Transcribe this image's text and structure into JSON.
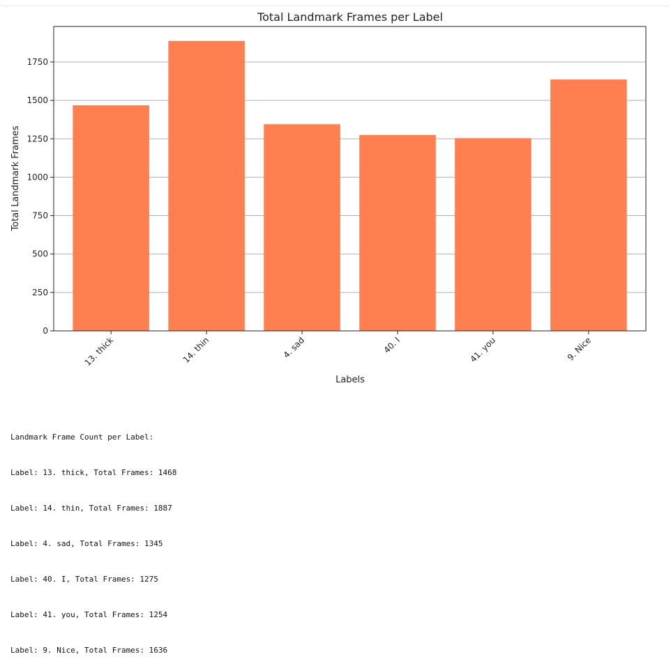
{
  "chart_data": {
    "type": "bar",
    "title": "Total Landmark Frames per Label",
    "xlabel": "Labels",
    "ylabel": "Total Landmark Frames",
    "categories": [
      "13. thick",
      "14. thin",
      "4. sad",
      "40. I",
      "41. you",
      "9. Nice"
    ],
    "values": [
      1468,
      1887,
      1345,
      1275,
      1254,
      1636
    ],
    "ylim": [
      0,
      1981
    ],
    "yticks": [
      0,
      250,
      500,
      750,
      1000,
      1250,
      1500,
      1750
    ],
    "grid": "y",
    "bar_color": "#ff7f50"
  },
  "output": {
    "header": "Landmark Frame Count per Label:",
    "lines": [
      "Label: 13. thick, Total Frames: 1468",
      "Label: 14. thin, Total Frames: 1887",
      "Label: 4. sad, Total Frames: 1345",
      "Label: 40. I, Total Frames: 1275",
      "Label: 41. you, Total Frames: 1254",
      "Label: 9. Nice, Total Frames: 1636"
    ]
  }
}
